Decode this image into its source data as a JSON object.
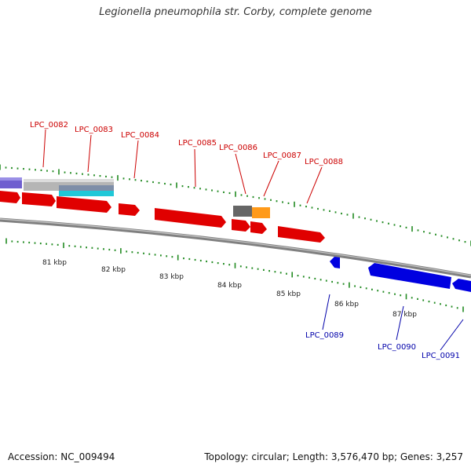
{
  "title": "Legionella pneumophila str. Corby, complete genome",
  "accession": "Accession: NC_009494",
  "summary": "Topology: circular; Length: 3,576,470 bp; Genes: 3,257",
  "colors": {
    "forward_gene": "#ff0000",
    "reverse_gene": "#0000ee",
    "forward_label": "#cc0000",
    "reverse_label": "#0000aa",
    "tick": "#228b22",
    "backbone": "#808080"
  },
  "ruler": [
    {
      "label": "81 kbp"
    },
    {
      "label": "82 kbp"
    },
    {
      "label": "83 kbp"
    },
    {
      "label": "84 kbp"
    },
    {
      "label": "85 kbp"
    },
    {
      "label": "86 kbp"
    },
    {
      "label": "87 kbp"
    }
  ],
  "forward_genes": [
    {
      "label": "LPC_0082"
    },
    {
      "label": "LPC_0083"
    },
    {
      "label": "LPC_0084"
    },
    {
      "label": "LPC_0085"
    },
    {
      "label": "LPC_0086"
    },
    {
      "label": "LPC_0087"
    },
    {
      "label": "LPC_0088"
    }
  ],
  "reverse_genes": [
    {
      "label": "LPC_0089"
    },
    {
      "label": "LPC_0090"
    },
    {
      "label": "LPC_0091"
    }
  ]
}
